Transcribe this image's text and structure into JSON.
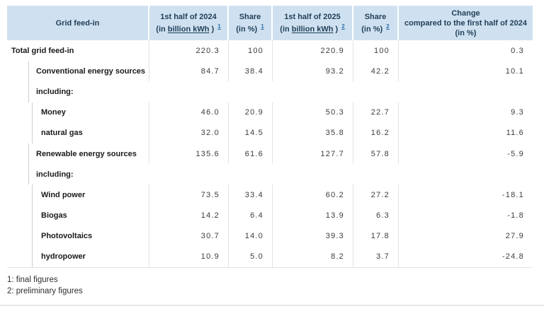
{
  "colors": {
    "header_bg": "#cfe1f0",
    "header_text": "#1f3e58",
    "footnote_link_blue": "#2e6da8",
    "grid_line": "#e2e2e2"
  },
  "header": {
    "col_label": "Grid feed-in",
    "col_2024": {
      "line1": "1st half of 2024",
      "pre": "(in ",
      "abbr": "billion kWh",
      "post": " ) ",
      "sup": "1"
    },
    "col_share_2024": {
      "line1": "Share",
      "line2": "(in %) ",
      "sup": "1"
    },
    "col_2025": {
      "line1": "1st half of 2025",
      "pre": "(in ",
      "abbr": "billion kWh",
      "post": " ) ",
      "sup": "2"
    },
    "col_share_2025": {
      "line1": "Share",
      "line2": "(in %) ",
      "sup": "2"
    },
    "col_change": {
      "line1": "Change",
      "line2": "compared to the first half of 2024",
      "line3": "(in %)"
    }
  },
  "chart_data": {
    "type": "table",
    "title": "Grid feed-in",
    "columns": [
      "Grid feed-in",
      "1st half of 2024 (in billion kWh) 1",
      "Share (in %) 1",
      "1st half of 2025 (in billion kWh) 2",
      "Share (in %) 2",
      "Change compared to the first half of 2024 (in %)"
    ],
    "rows": [
      {
        "label": "Total grid feed-in",
        "indent": 0,
        "values": [
          "220.3",
          "100",
          "220.9",
          "100",
          "0.3"
        ]
      },
      {
        "label": "Conventional energy sources",
        "indent": 1,
        "values": [
          "84.7",
          "38.4",
          "93.2",
          "42.2",
          "10.1"
        ]
      },
      {
        "label": "including:",
        "indent": 1,
        "values": [
          "",
          "",
          "",
          "",
          ""
        ]
      },
      {
        "label": "Money",
        "indent": 2,
        "values": [
          "46.0",
          "20.9",
          "50.3",
          "22.7",
          "9.3"
        ]
      },
      {
        "label": "natural gas",
        "indent": 2,
        "values": [
          "32.0",
          "14.5",
          "35.8",
          "16.2",
          "11.6"
        ]
      },
      {
        "label": "Renewable energy sources",
        "indent": 1,
        "values": [
          "135.6",
          "61.6",
          "127.7",
          "57.8",
          "-5.9"
        ]
      },
      {
        "label": "including:",
        "indent": 1,
        "values": [
          "",
          "",
          "",
          "",
          ""
        ]
      },
      {
        "label": "Wind power",
        "indent": 2,
        "values": [
          "73.5",
          "33.4",
          "60.2",
          "27.2",
          "-18.1"
        ]
      },
      {
        "label": "Biogas",
        "indent": 2,
        "values": [
          "14.2",
          "6.4",
          "13.9",
          "6.3",
          "-1.8"
        ]
      },
      {
        "label": "Photovoltaics",
        "indent": 2,
        "values": [
          "30.7",
          "14.0",
          "39.3",
          "17.8",
          "27.9"
        ]
      },
      {
        "label": "hydropower",
        "indent": 2,
        "values": [
          "10.9",
          "5.0",
          "8.2",
          "3.7",
          "-24.8"
        ]
      }
    ]
  },
  "footnotes": {
    "f1": "1: final figures",
    "f2": "2: preliminary figures"
  }
}
